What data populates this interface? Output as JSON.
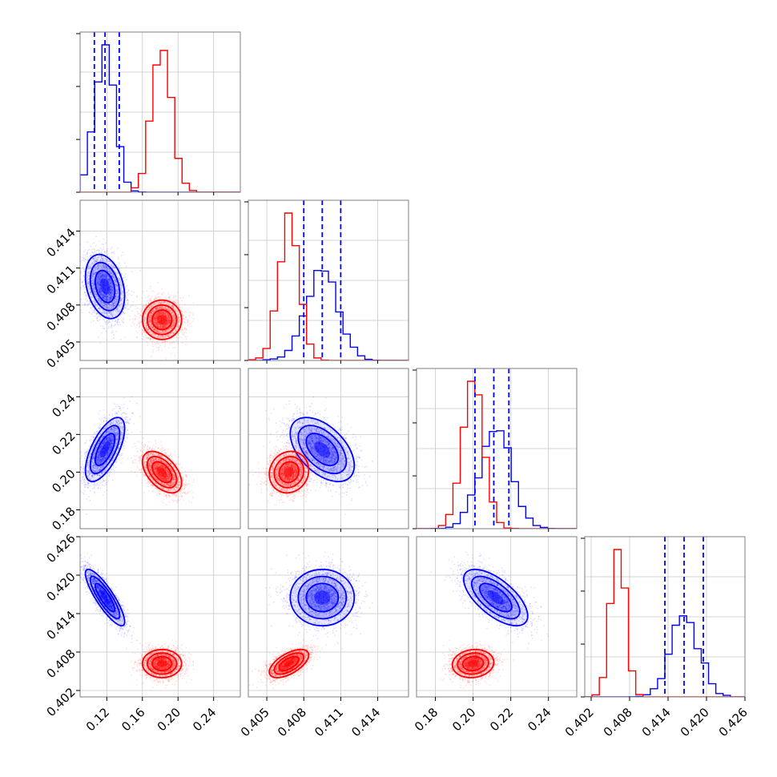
{
  "figure": {
    "type": "corner-plot",
    "background": "#ffffff",
    "grid": true
  },
  "colors": {
    "series_a": "#0000ff",
    "series_b": "#ff0000",
    "frame": "#7f7f7f",
    "grid": "#c8c8c8"
  },
  "chart_data": {
    "type": "corner",
    "parameters": [
      {
        "index": 0,
        "range": [
          0.09,
          0.27
        ],
        "ticks": [
          0.12,
          0.16,
          0.2,
          0.24
        ],
        "tick_labels": [
          "0.12",
          "0.16",
          "0.20",
          "0.24"
        ]
      },
      {
        "index": 1,
        "range": [
          0.4035,
          0.4165
        ],
        "ticks": [
          0.405,
          0.408,
          0.411,
          0.414
        ],
        "tick_labels": [
          "0.405",
          "0.408",
          "0.411",
          "0.414"
        ]
      },
      {
        "index": 2,
        "range": [
          0.17,
          0.255
        ],
        "ticks": [
          0.18,
          0.2,
          0.22,
          0.24
        ],
        "tick_labels": [
          "0.18",
          "0.20",
          "0.22",
          "0.24"
        ]
      },
      {
        "index": 3,
        "range": [
          0.401,
          0.426
        ],
        "ticks": [
          0.402,
          0.408,
          0.414,
          0.42,
          0.426
        ],
        "tick_labels": [
          "0.402",
          "0.408",
          "0.414",
          "0.420",
          "0.426"
        ]
      }
    ],
    "series": [
      {
        "color": "#0000ff",
        "mean": [
          0.118,
          0.4095,
          0.212,
          0.4165
        ],
        "std": [
          0.011,
          0.0013,
          0.0085,
          0.0022
        ],
        "correlations": {
          "0-1": -0.3,
          "0-2": 0.65,
          "1-2": -0.5,
          "0-3": -0.85,
          "1-3": 0.0,
          "2-3": -0.65
        },
        "quantiles": [
          [
            0.106,
            0.118,
            0.134
          ],
          [
            0.408,
            0.4095,
            0.411
          ],
          [
            0.201,
            0.211,
            0.219
          ],
          [
            0.4135,
            0.4165,
            0.4195
          ]
        ],
        "extra_tail": {
          "param": 0,
          "note": ""
        }
      },
      {
        "color": "#ff0000",
        "mean": [
          0.182,
          0.4068,
          0.2,
          0.4062
        ],
        "std": [
          0.011,
          0.0008,
          0.0055,
          0.0011
        ],
        "correlations": {
          "0-1": 0.0,
          "0-2": -0.5,
          "1-2": 0.1,
          "0-3": 0.0,
          "1-3": 0.6,
          "2-3": 0.1
        },
        "quantiles": null
      }
    ]
  }
}
